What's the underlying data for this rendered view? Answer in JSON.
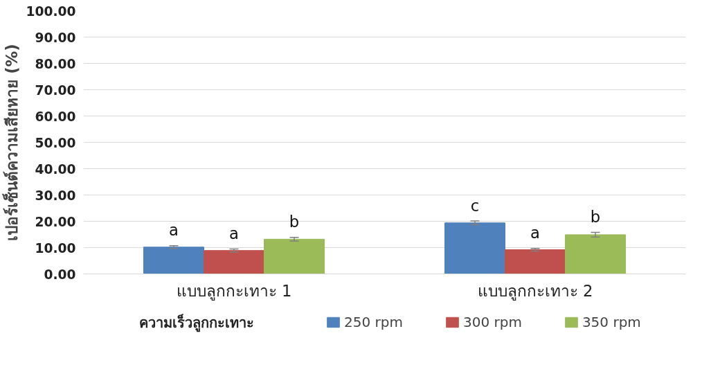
{
  "chart_data": {
    "type": "bar",
    "ylabel": "เปอร์เซ็นต์ความเสียหาย (%)",
    "legend_title": "ความเร็วลูกกะเทาะ",
    "categories": [
      "แบบลูกกะเทาะ 1",
      "แบบลูกกะเทาะ 2"
    ],
    "series": [
      {
        "name": "250 rpm",
        "color": "#4f81bd",
        "values": [
          10.2,
          19.4
        ],
        "errors": [
          0.5,
          0.7
        ],
        "value_labels": [
          "a",
          "c"
        ]
      },
      {
        "name": "300 rpm",
        "color": "#c0504d",
        "values": [
          8.9,
          9.2
        ],
        "errors": [
          0.6,
          0.5
        ],
        "value_labels": [
          "a",
          "a"
        ]
      },
      {
        "name": "350 rpm",
        "color": "#9bbb59",
        "values": [
          13.2,
          14.9
        ],
        "errors": [
          0.7,
          0.9
        ],
        "value_labels": [
          "b",
          "b"
        ]
      }
    ],
    "ylim": [
      0,
      100
    ],
    "yticks": [
      {
        "value": 0,
        "label": "0.00"
      },
      {
        "value": 10,
        "label": "10.00"
      },
      {
        "value": 20,
        "label": "20.00"
      },
      {
        "value": 30,
        "label": "30.00"
      },
      {
        "value": 40,
        "label": "40.00"
      },
      {
        "value": 50,
        "label": "50.00"
      },
      {
        "value": 60,
        "label": "60.00"
      },
      {
        "value": 70,
        "label": "70.00"
      },
      {
        "value": 80,
        "label": "80.00"
      },
      {
        "value": 90,
        "label": "90.00"
      },
      {
        "value": 100,
        "label": "100.00"
      }
    ],
    "grid": "y",
    "legend": "bottom"
  }
}
